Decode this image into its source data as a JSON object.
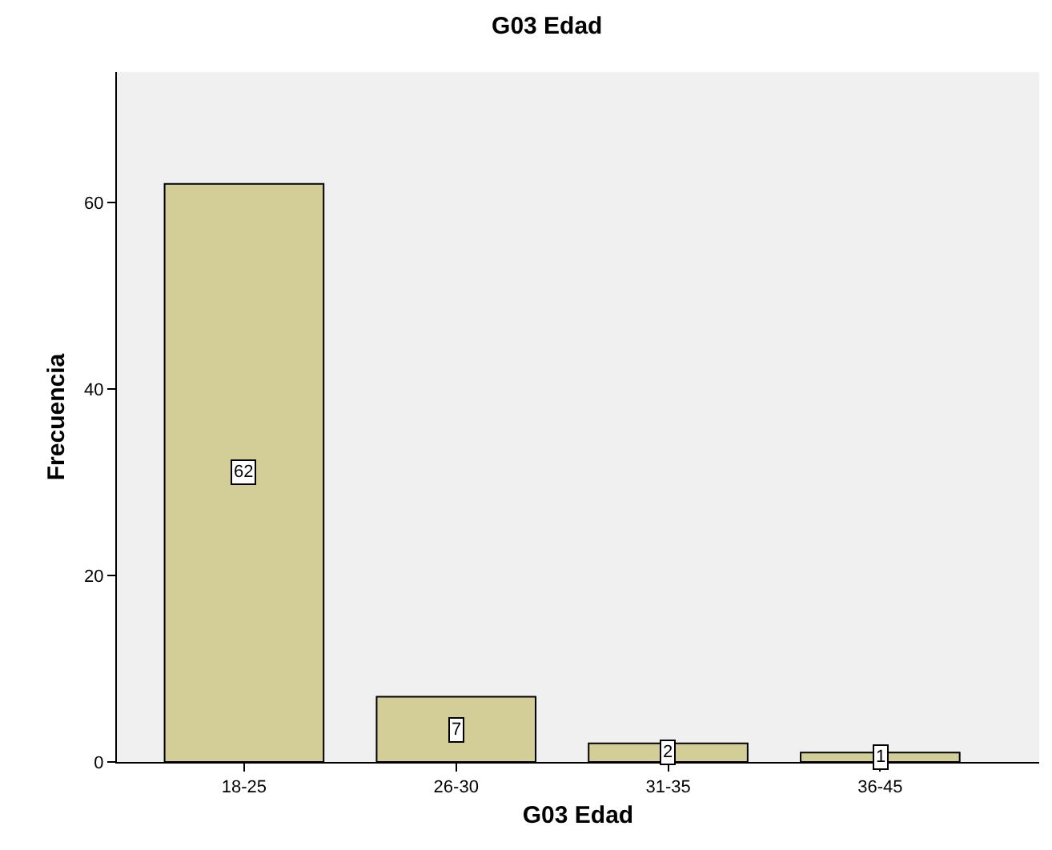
{
  "chart_data": {
    "type": "bar",
    "title": "G03 Edad",
    "xlabel": "G03 Edad",
    "ylabel": "Frecuencia",
    "categories": [
      "18-25",
      "26-30",
      "31-35",
      "36-45"
    ],
    "values": [
      62,
      7,
      2,
      1
    ],
    "color": "#d3ce97",
    "ylim": [
      0,
      74
    ],
    "yticks": [
      0,
      20,
      40,
      60
    ],
    "grid": false,
    "data_labels": true
  }
}
